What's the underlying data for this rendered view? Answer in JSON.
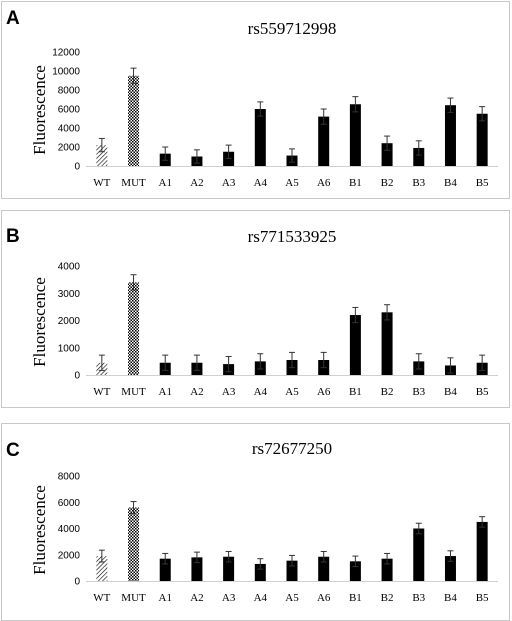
{
  "chart_data": [
    {
      "panel": "A",
      "type": "bar",
      "title": "rs559712998",
      "ylabel": "Fluorescence",
      "xlabel": "",
      "ylim": [
        0,
        12000
      ],
      "yticks": [
        0,
        2000,
        4000,
        6000,
        8000,
        10000,
        12000
      ],
      "categories": [
        "WT",
        "MUT",
        "A1",
        "A2",
        "A3",
        "A4",
        "A5",
        "A6",
        "B1",
        "B2",
        "B3",
        "B4",
        "B5"
      ],
      "values": [
        2200,
        9500,
        1300,
        1000,
        1500,
        6000,
        1100,
        5200,
        6500,
        2400,
        1900,
        6400,
        5500
      ],
      "errors": [
        700,
        800,
        700,
        700,
        700,
        750,
        700,
        800,
        800,
        750,
        750,
        750,
        750
      ],
      "patterns": [
        "hatch",
        "check",
        "solid",
        "solid",
        "solid",
        "solid",
        "solid",
        "solid",
        "solid",
        "solid",
        "solid",
        "solid",
        "solid"
      ]
    },
    {
      "panel": "B",
      "type": "bar",
      "title": "rs771533925",
      "ylabel": "Fluorescence",
      "xlabel": "",
      "ylim": [
        0,
        4000
      ],
      "yticks": [
        0,
        1000,
        2000,
        3000,
        4000
      ],
      "categories": [
        "WT",
        "MUT",
        "A1",
        "A2",
        "A3",
        "A4",
        "A5",
        "A6",
        "B1",
        "B2",
        "B3",
        "B4",
        "B5"
      ],
      "values": [
        450,
        3400,
        450,
        450,
        400,
        500,
        550,
        550,
        2200,
        2300,
        500,
        350,
        450
      ],
      "errors": [
        280,
        280,
        280,
        280,
        280,
        280,
        280,
        280,
        280,
        280,
        280,
        280,
        280
      ],
      "patterns": [
        "hatch",
        "check",
        "solid",
        "solid",
        "solid",
        "solid",
        "solid",
        "solid",
        "solid",
        "solid",
        "solid",
        "solid",
        "solid"
      ]
    },
    {
      "panel": "C",
      "type": "bar",
      "title": "rs72677250",
      "ylabel": "Fluorescence",
      "xlabel": "",
      "ylim": [
        0,
        8000
      ],
      "yticks": [
        0,
        2000,
        4000,
        6000,
        8000
      ],
      "categories": [
        "WT",
        "MUT",
        "A1",
        "A2",
        "A3",
        "A4",
        "A5",
        "A6",
        "B1",
        "B2",
        "B3",
        "B4",
        "B5"
      ],
      "values": [
        1900,
        5600,
        1700,
        1800,
        1850,
        1300,
        1550,
        1850,
        1500,
        1700,
        4000,
        1900,
        4500
      ],
      "errors": [
        450,
        450,
        400,
        400,
        400,
        400,
        400,
        400,
        400,
        400,
        400,
        400,
        400
      ],
      "patterns": [
        "hatch",
        "check",
        "solid",
        "solid",
        "solid",
        "solid",
        "solid",
        "solid",
        "solid",
        "solid",
        "solid",
        "solid",
        "solid"
      ]
    }
  ],
  "colors": {
    "bar": "#000000",
    "frame": "#c8c8c8"
  }
}
